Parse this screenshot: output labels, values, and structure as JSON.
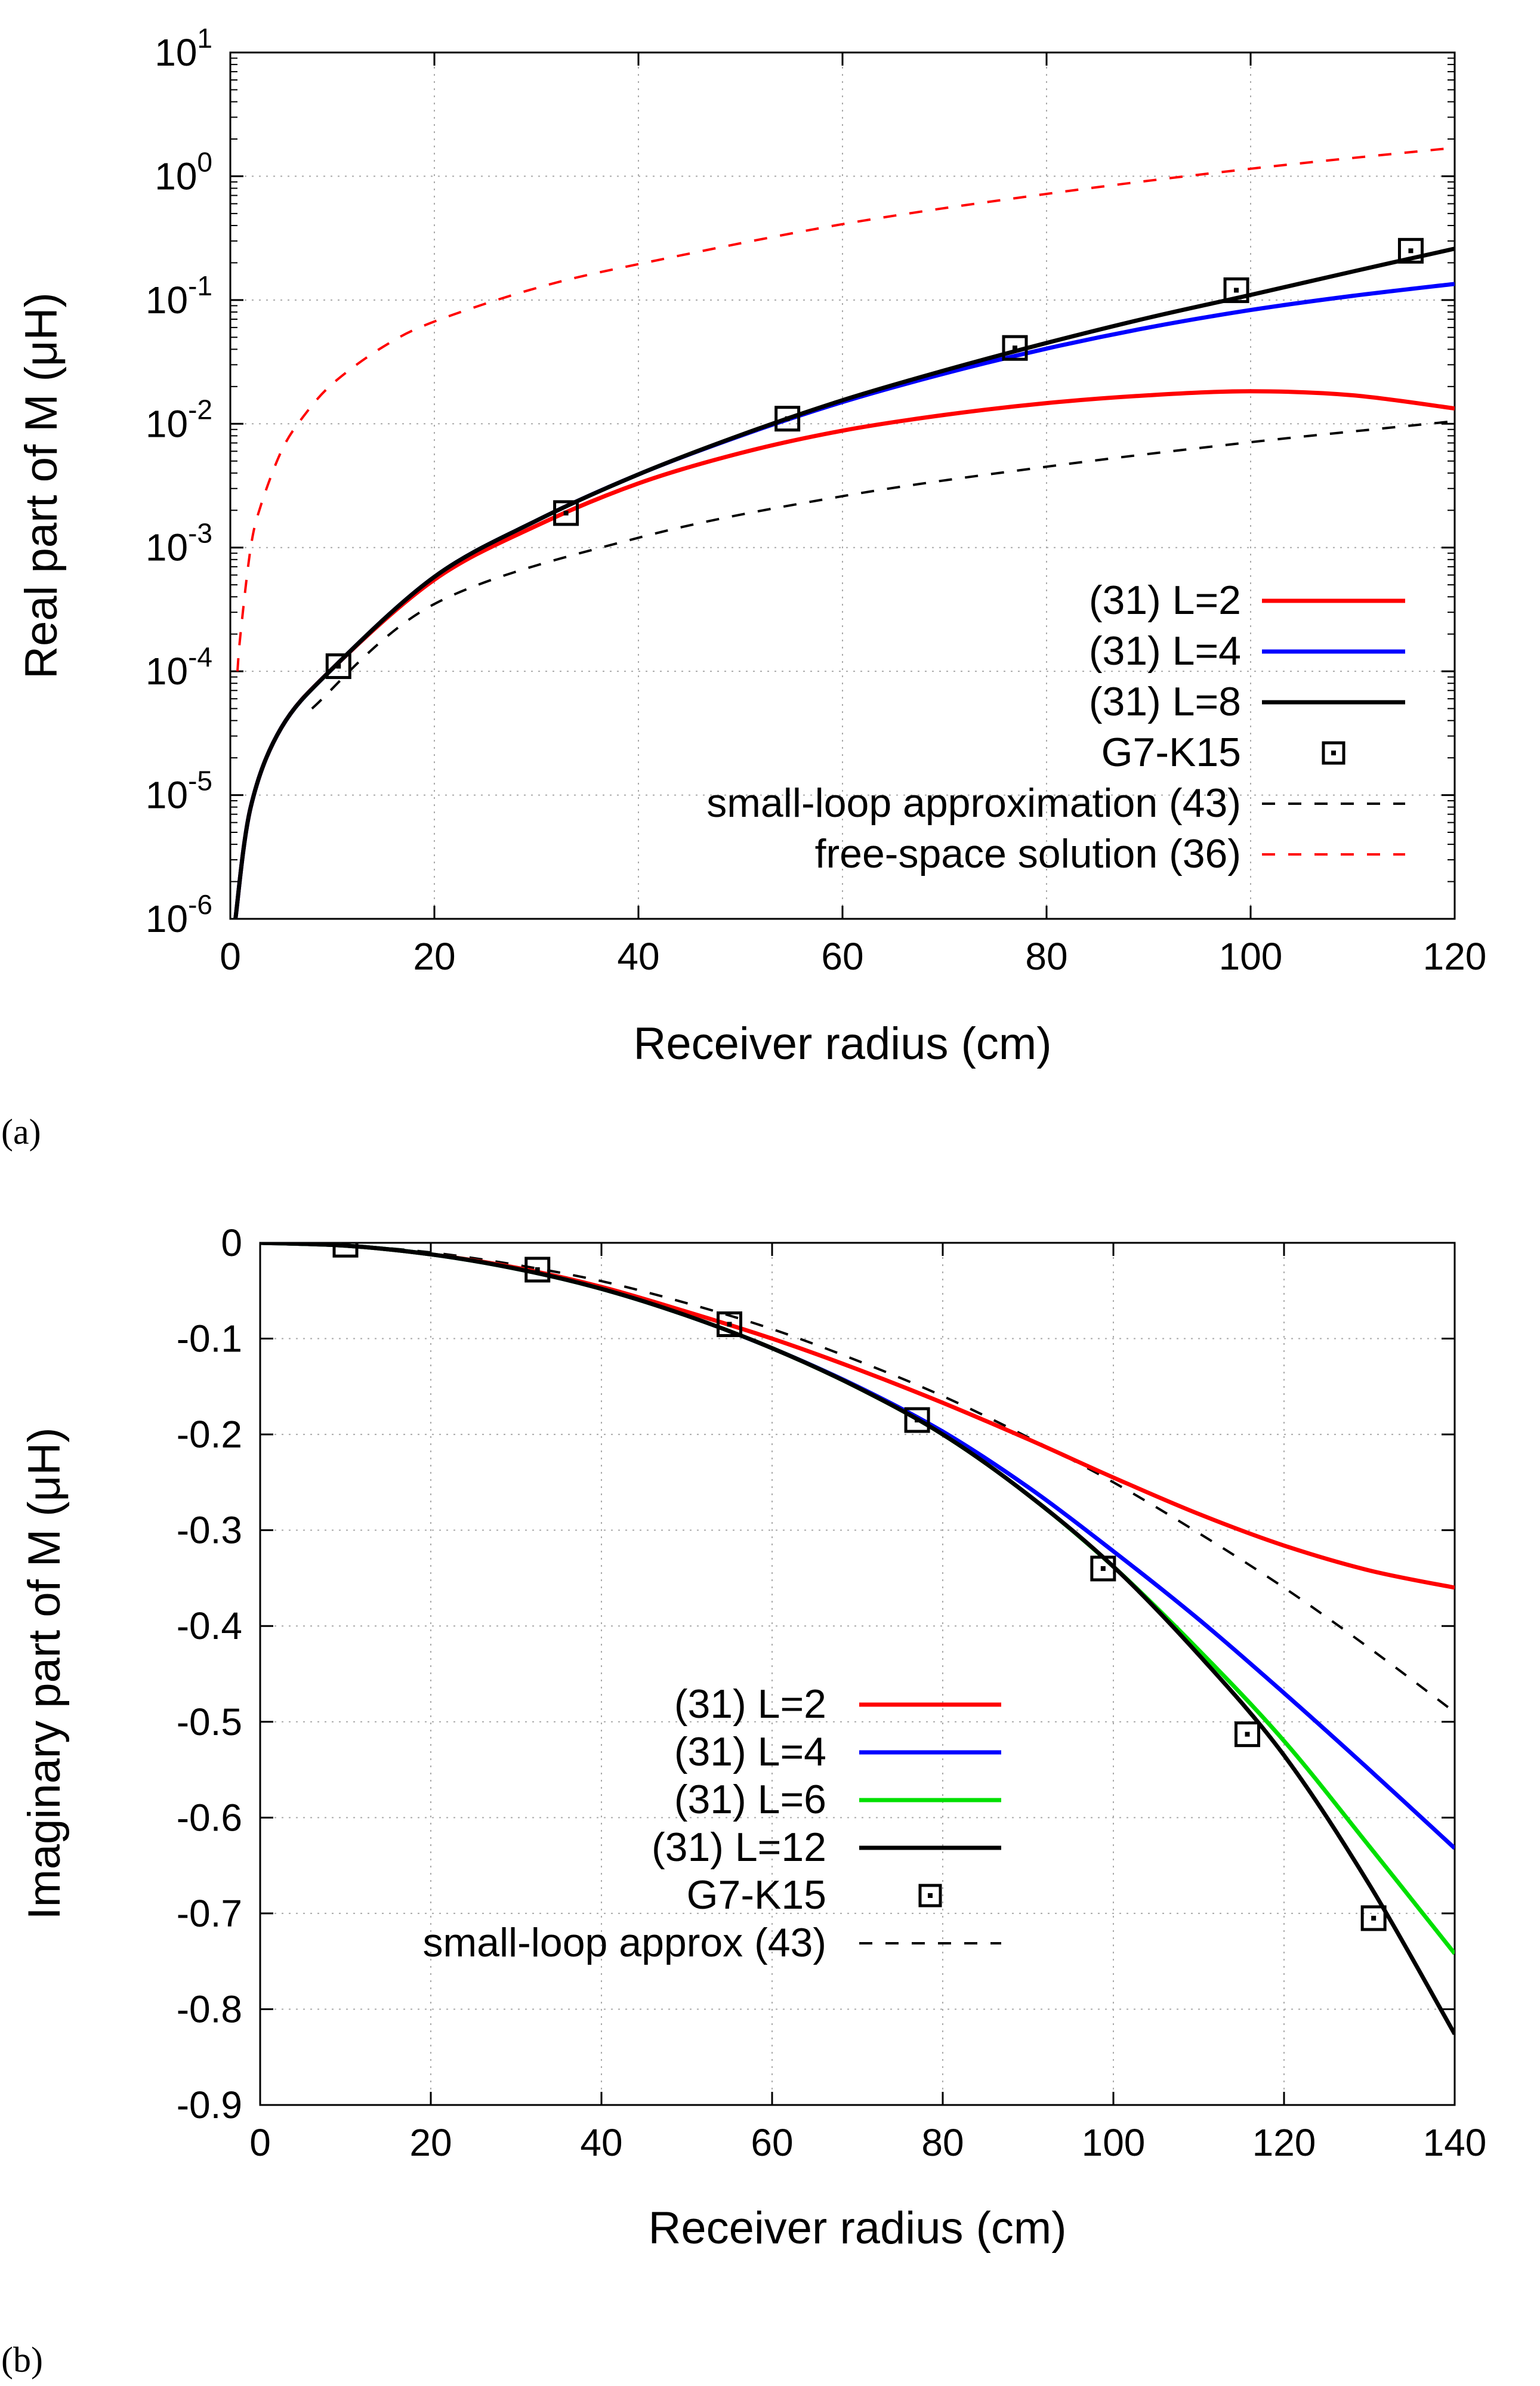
{
  "panel_labels": [
    "(a)",
    "(b)"
  ],
  "chart_data": [
    {
      "type": "line",
      "yscale": "log",
      "ylabel": "Real part of M (μH)",
      "xlabel": "Receiver radius (cm)",
      "xlim": [
        0,
        120
      ],
      "ylim": [
        1e-06,
        10
      ],
      "xticks": [
        0,
        20,
        40,
        60,
        80,
        100,
        120
      ],
      "yticks": [
        1e-06,
        1e-05,
        0.0001,
        0.001,
        0.01,
        0.1,
        1,
        10
      ],
      "ytick_labels": [
        {
          "base": "10",
          "exp": "-6"
        },
        {
          "base": "10",
          "exp": "-5"
        },
        {
          "base": "10",
          "exp": "-4"
        },
        {
          "base": "10",
          "exp": "-3"
        },
        {
          "base": "10",
          "exp": "-2"
        },
        {
          "base": "10",
          "exp": "-1"
        },
        {
          "base": "10",
          "exp": "0"
        },
        {
          "base": "10",
          "exp": "1"
        }
      ],
      "grid": true,
      "legend_position": "bottom-right",
      "series": [
        {
          "name": "(31)  L=2",
          "color": "#ff0000",
          "style": "solid",
          "x": [
            0.5,
            2,
            5,
            10,
            20,
            30,
            40,
            50,
            60,
            70,
            80,
            90,
            100,
            110,
            120
          ],
          "y": [
            1e-06,
            8e-06,
            3.5e-05,
            0.000105,
            0.00055,
            0.0015,
            0.0033,
            0.0058,
            0.0088,
            0.0118,
            0.0147,
            0.017,
            0.0183,
            0.017,
            0.0133
          ]
        },
        {
          "name": "(31)  L=4",
          "color": "#0000ff",
          "style": "solid",
          "x": [
            0.5,
            2,
            5,
            10,
            20,
            30,
            40,
            50,
            60,
            70,
            80,
            90,
            100,
            110,
            120
          ],
          "y": [
            1e-06,
            8e-06,
            3.5e-05,
            0.000105,
            0.00058,
            0.00165,
            0.0039,
            0.008,
            0.015,
            0.0255,
            0.0405,
            0.06,
            0.083,
            0.108,
            0.135
          ]
        },
        {
          "name": "(31)  L=8",
          "color": "#000000",
          "style": "solid",
          "x": [
            0.5,
            2,
            5,
            10,
            20,
            30,
            40,
            50,
            60,
            70,
            80,
            90,
            100,
            110,
            120
          ],
          "y": [
            1e-06,
            8e-06,
            3.5e-05,
            0.000105,
            0.00058,
            0.00165,
            0.0039,
            0.0081,
            0.0155,
            0.027,
            0.045,
            0.072,
            0.11,
            0.17,
            0.26
          ]
        },
        {
          "name": "G7-K15",
          "color": "#000000",
          "style": "marker",
          "x": [
            10.6,
            32.9,
            54.6,
            76.9,
            98.6,
            115.7
          ],
          "y": [
            0.00011,
            0.0019,
            0.011,
            0.041,
            0.12,
            0.25
          ]
        },
        {
          "name": "small-loop approximation (43)",
          "color": "#000000",
          "style": "dashed",
          "x": [
            8,
            20,
            40,
            60,
            80,
            100,
            120
          ],
          "y": [
            5e-05,
            0.00035,
            0.0012,
            0.0026,
            0.0045,
            0.0071,
            0.0105
          ]
        },
        {
          "name": "free-space solution (36)",
          "color": "#ff0000",
          "style": "dashed",
          "x": [
            0.7,
            1,
            2,
            3,
            5,
            7,
            10,
            15,
            20,
            30,
            40,
            60,
            80,
            100,
            120
          ],
          "y": [
            0.0001,
            0.0002,
            0.001,
            0.0022,
            0.006,
            0.011,
            0.021,
            0.042,
            0.067,
            0.125,
            0.195,
            0.41,
            0.72,
            1.15,
            1.7
          ]
        }
      ]
    },
    {
      "type": "line",
      "yscale": "linear",
      "ylabel": "Imaginary part of M (μH)",
      "xlabel": "Receiver radius (cm)",
      "xlim": [
        0,
        140
      ],
      "ylim": [
        -0.9,
        0
      ],
      "xticks": [
        0,
        20,
        40,
        60,
        80,
        100,
        120,
        140
      ],
      "yticks": [
        0,
        -0.1,
        -0.2,
        -0.3,
        -0.4,
        -0.5,
        -0.6,
        -0.7,
        -0.8,
        -0.9
      ],
      "ytick_labels": [
        "0",
        "-0.1",
        "-0.2",
        "-0.3",
        "-0.4",
        "-0.5",
        "-0.6",
        "-0.7",
        "-0.8",
        "-0.9"
      ],
      "grid": true,
      "legend_position": "bottom-center",
      "series": [
        {
          "name": "(31) L=2",
          "color": "#ff0000",
          "style": "solid",
          "x": [
            0,
            10,
            20,
            30,
            40,
            50,
            60,
            70,
            80,
            90,
            100,
            110,
            120,
            130,
            140
          ],
          "y": [
            0,
            -0.003,
            -0.012,
            -0.026,
            -0.046,
            -0.072,
            -0.1,
            -0.132,
            -0.167,
            -0.205,
            -0.245,
            -0.283,
            -0.316,
            -0.342,
            -0.36
          ]
        },
        {
          "name": "(31) L=4",
          "color": "#0000ff",
          "style": "solid",
          "x": [
            0,
            10,
            20,
            30,
            40,
            50,
            60,
            70,
            80,
            90,
            100,
            110,
            120,
            130,
            140
          ],
          "y": [
            0,
            -0.003,
            -0.012,
            -0.027,
            -0.048,
            -0.076,
            -0.11,
            -0.15,
            -0.197,
            -0.255,
            -0.322,
            -0.393,
            -0.47,
            -0.55,
            -0.632
          ]
        },
        {
          "name": "(31) L=6",
          "color": "#00e000",
          "style": "solid",
          "x": [
            0,
            10,
            20,
            30,
            40,
            50,
            60,
            70,
            80,
            90,
            100,
            110,
            120,
            130,
            140
          ],
          "y": [
            0,
            -0.003,
            -0.012,
            -0.027,
            -0.048,
            -0.076,
            -0.11,
            -0.151,
            -0.2,
            -0.263,
            -0.338,
            -0.425,
            -0.52,
            -0.63,
            -0.742
          ]
        },
        {
          "name": "(31) L=12",
          "color": "#000000",
          "style": "solid",
          "x": [
            0,
            10,
            20,
            30,
            40,
            50,
            60,
            70,
            80,
            90,
            100,
            110,
            120,
            130,
            140
          ],
          "y": [
            0,
            -0.003,
            -0.012,
            -0.027,
            -0.048,
            -0.076,
            -0.11,
            -0.151,
            -0.2,
            -0.263,
            -0.338,
            -0.43,
            -0.535,
            -0.67,
            -0.826
          ]
        },
        {
          "name": "G7-K15",
          "color": "#000000",
          "style": "marker",
          "x": [
            10,
            32.5,
            55,
            77,
            98.8,
            115.7,
            130.5
          ],
          "y": [
            -0.002,
            -0.028,
            -0.085,
            -0.185,
            -0.34,
            -0.513,
            -0.705
          ]
        },
        {
          "name": "small-loop approx (43)",
          "color": "#000000",
          "style": "dashed",
          "x": [
            0,
            10,
            20,
            30,
            40,
            50,
            60,
            70,
            80,
            90,
            100,
            110,
            120,
            130,
            140
          ],
          "y": [
            0,
            -0.0025,
            -0.01,
            -0.023,
            -0.04,
            -0.063,
            -0.09,
            -0.123,
            -0.16,
            -0.203,
            -0.25,
            -0.303,
            -0.36,
            -0.423,
            -0.49
          ]
        }
      ]
    }
  ]
}
